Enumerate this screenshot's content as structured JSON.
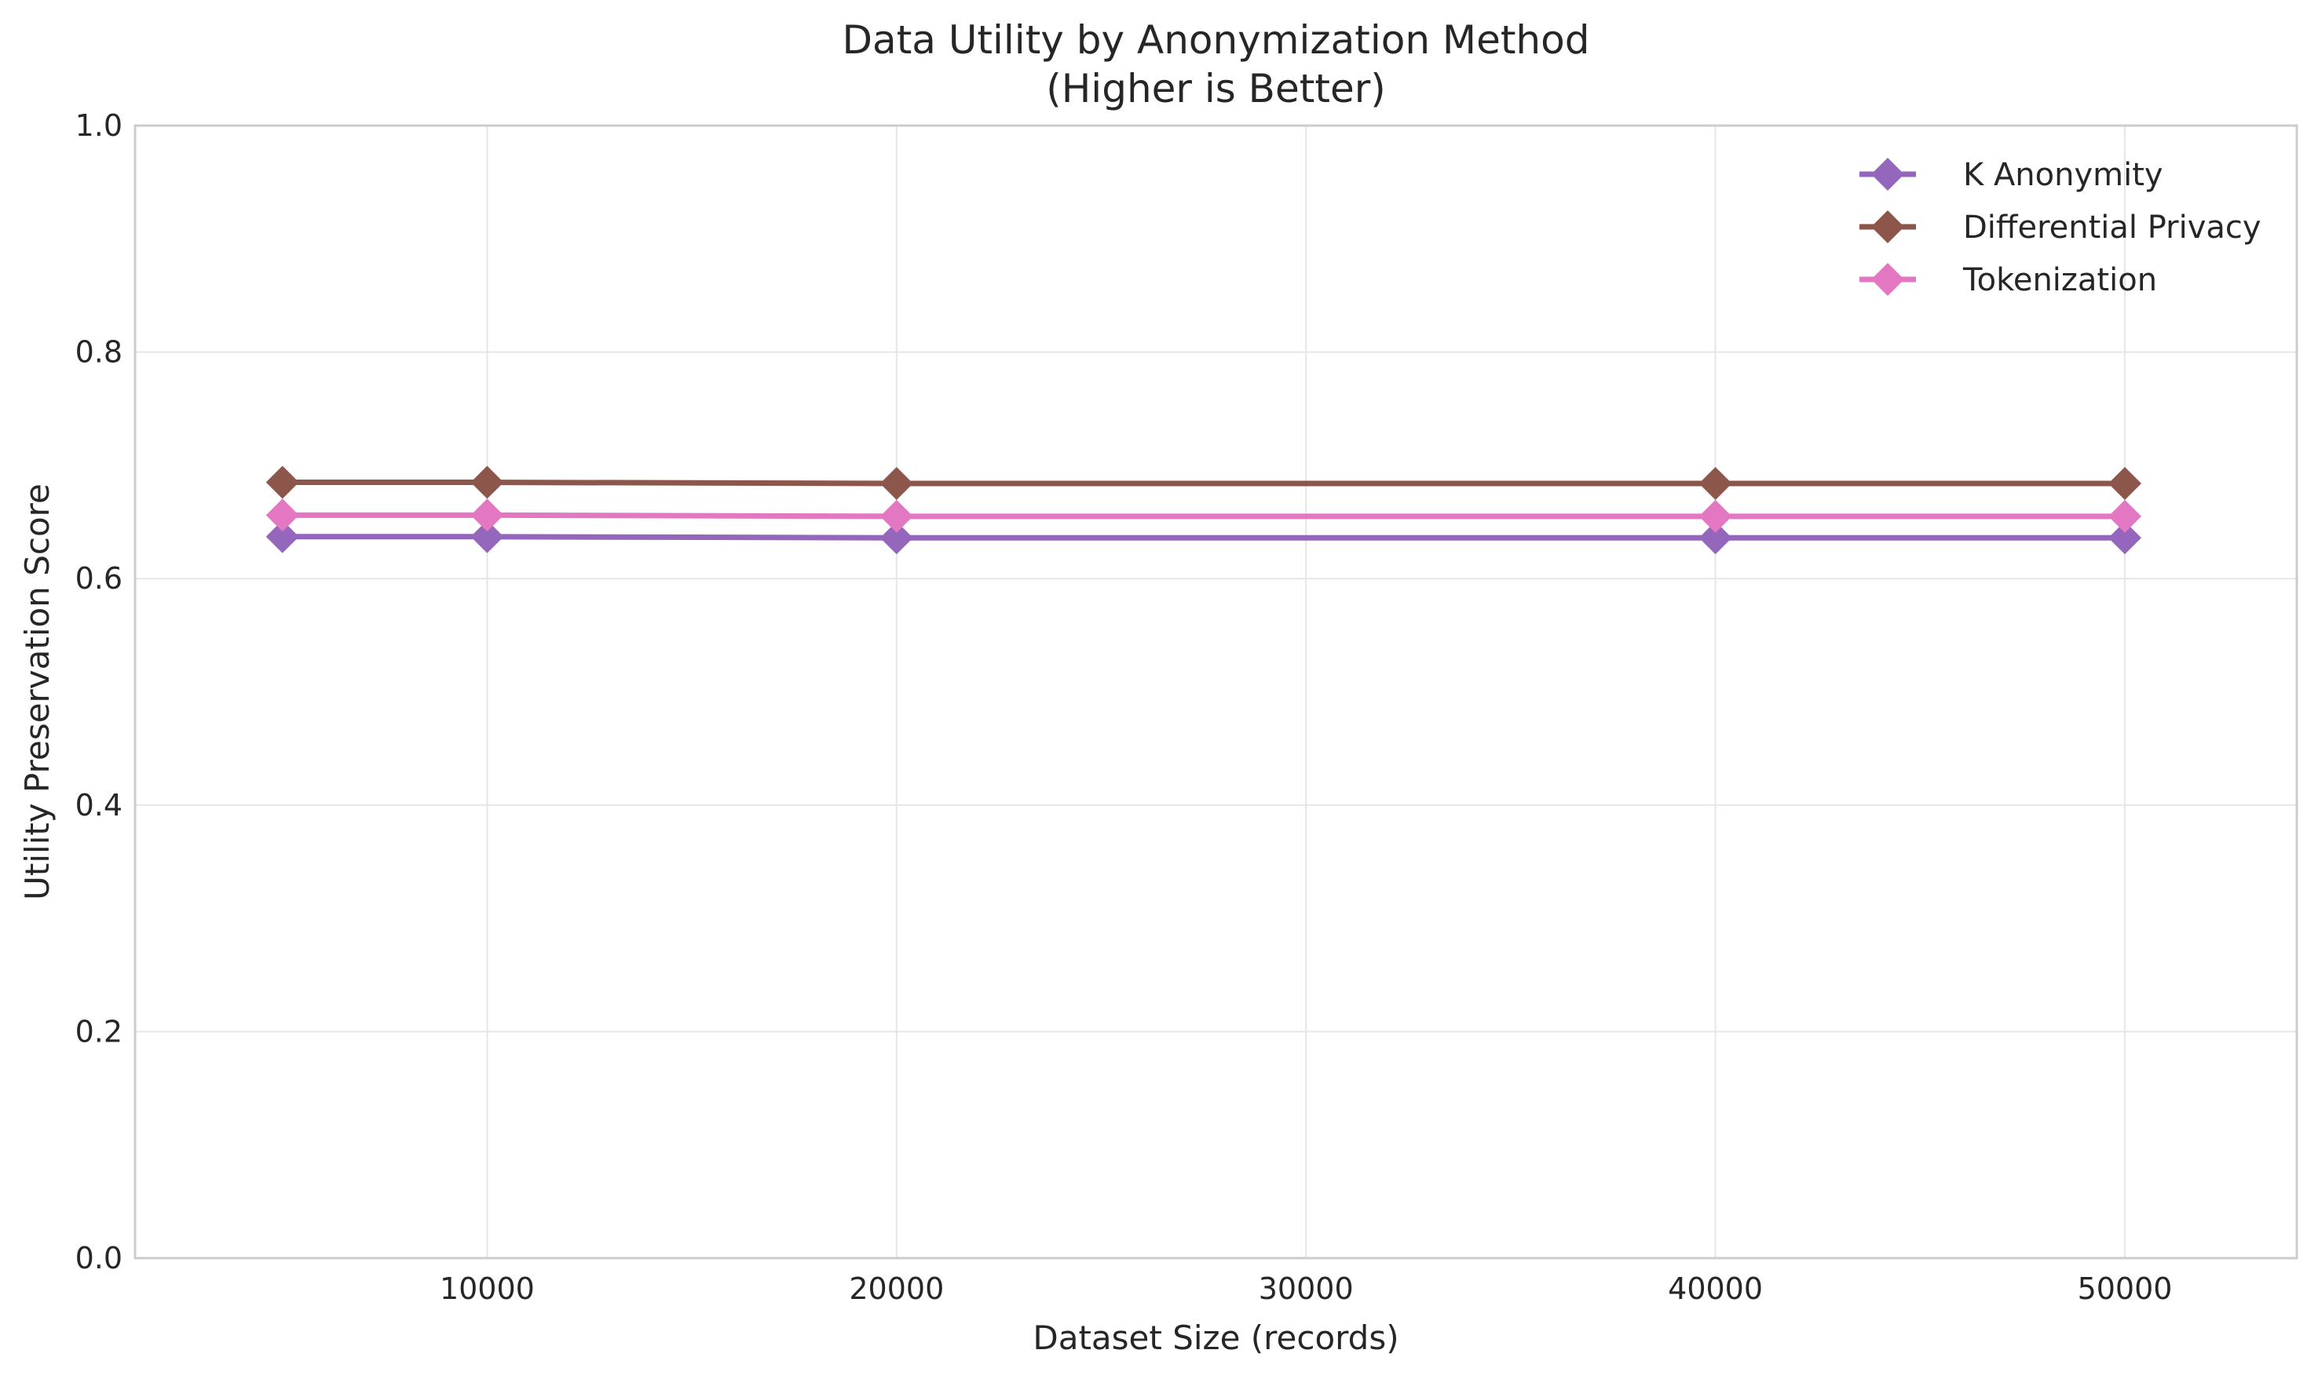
{
  "chart_data": {
    "type": "line",
    "title": "Data Utility by Anonymization Method",
    "subtitle": "(Higher is Better)",
    "xlabel": "Dataset Size (records)",
    "ylabel": "Utility Preservation Score",
    "x": [
      5000,
      10000,
      20000,
      40000,
      50000
    ],
    "xlim": [
      1400,
      54200
    ],
    "ylim": [
      0,
      1
    ],
    "x_ticks": [
      10000,
      20000,
      30000,
      40000,
      50000
    ],
    "x_tick_labels": [
      "10000",
      "20000",
      "30000",
      "40000",
      "50000"
    ],
    "y_ticks": [
      0,
      0.2,
      0.4,
      0.6,
      0.8,
      1
    ],
    "y_tick_labels": [
      "0.0",
      "0.2",
      "0.4",
      "0.6",
      "0.8",
      "1.0"
    ],
    "grid": true,
    "legend_position": "top-right",
    "series": [
      {
        "name": "K Anonymity",
        "color": "#9467bd",
        "marker": "diamond",
        "values": [
          0.637,
          0.637,
          0.636,
          0.636,
          0.636
        ]
      },
      {
        "name": "Differential Privacy",
        "color": "#8c564b",
        "marker": "diamond",
        "values": [
          0.685,
          0.685,
          0.684,
          0.684,
          0.684
        ]
      },
      {
        "name": "Tokenization",
        "color": "#e377c2",
        "marker": "diamond",
        "values": [
          0.656,
          0.656,
          0.655,
          0.655,
          0.655
        ]
      }
    ]
  }
}
